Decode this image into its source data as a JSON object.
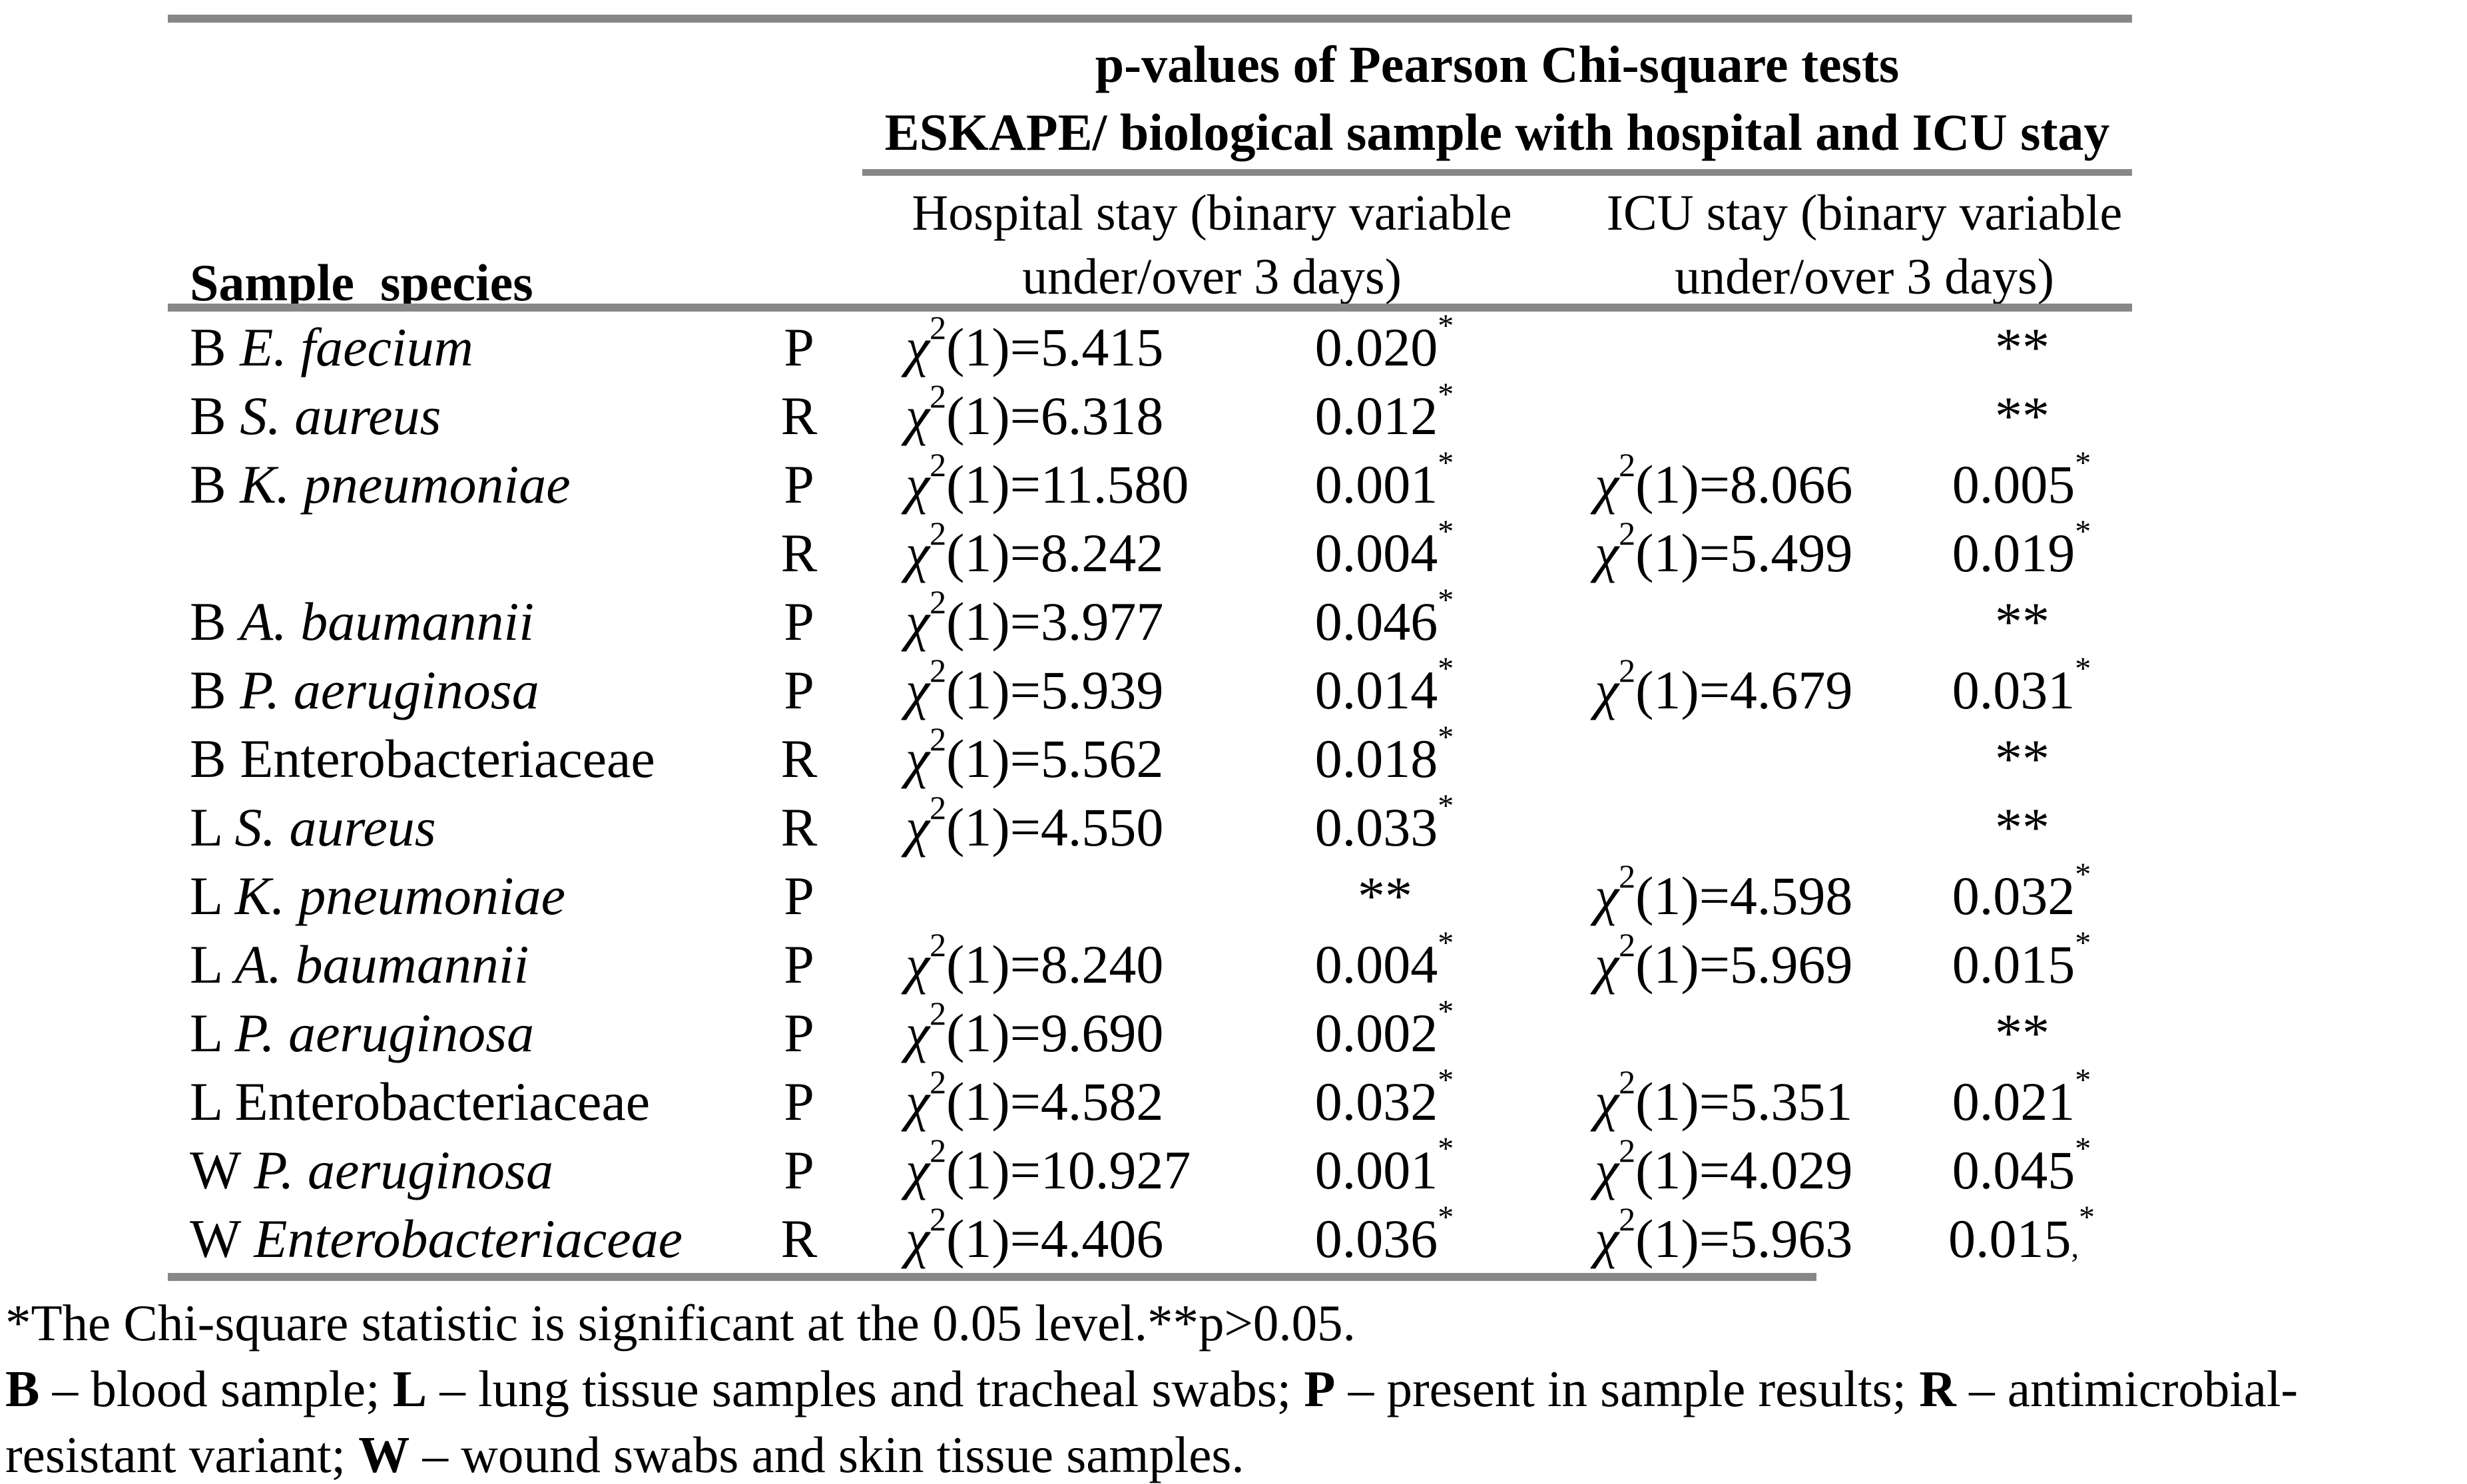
{
  "colors": {
    "rule_gray": "#878787",
    "text": "#000000",
    "background": "#ffffff"
  },
  "table": {
    "title_line1": "p-values of Pearson Chi-square tests",
    "title_line2": "ESKAPE/ biological sample with hospital and ICU stay",
    "species_column_header": "Sample_species",
    "hospital_header_line1": "Hospital stay (binary variable",
    "hospital_header_line2": "under/over 3 days)",
    "icu_header_line1": "ICU stay (binary variable",
    "icu_header_line2": "under/over 3 days)",
    "chi_format": {
      "symbol": "χ",
      "exponent": "2",
      "rest": "(1)="
    },
    "rows": [
      {
        "sample": "B",
        "species": "E. faecium",
        "species_italic": true,
        "variant": "P",
        "hospital": {
          "chi": "5.415",
          "p": "0.020",
          "sup": "*"
        },
        "icu": {
          "chi": "",
          "p": "**",
          "sup": ""
        }
      },
      {
        "sample": "B",
        "species": "S. aureus",
        "species_italic": true,
        "variant": "R",
        "hospital": {
          "chi": "6.318",
          "p": "0.012",
          "sup": "*"
        },
        "icu": {
          "chi": "",
          "p": "**",
          "sup": ""
        }
      },
      {
        "sample": "B",
        "species": "K. pneumoniae",
        "species_italic": true,
        "variant": "P",
        "hospital": {
          "chi": "11.580",
          "p": "0.001",
          "sup": "*"
        },
        "icu": {
          "chi": "8.066",
          "p": "0.005",
          "sup": "*"
        }
      },
      {
        "sample": "",
        "species": "",
        "species_italic": false,
        "variant": "R",
        "hospital": {
          "chi": "8.242",
          "p": "0.004",
          "sup": "*"
        },
        "icu": {
          "chi": "5.499",
          "p": "0.019",
          "sup": "*"
        }
      },
      {
        "sample": "B",
        "species": "A. baumannii",
        "species_italic": true,
        "variant": "P",
        "hospital": {
          "chi": "3.977",
          "p": "0.046",
          "sup": "*"
        },
        "icu": {
          "chi": "",
          "p": "**",
          "sup": ""
        }
      },
      {
        "sample": "B",
        "species": "P. aeruginosa",
        "species_italic": true,
        "variant": "P",
        "hospital": {
          "chi": "5.939",
          "p": "0.014",
          "sup": "*"
        },
        "icu": {
          "chi": "4.679",
          "p": "0.031",
          "sup": "*"
        }
      },
      {
        "sample": "B",
        "species": "Enterobacteriaceae",
        "species_italic": false,
        "variant": "R",
        "hospital": {
          "chi": "5.562",
          "p": "0.018",
          "sup": "*"
        },
        "icu": {
          "chi": "",
          "p": "**",
          "sup": ""
        }
      },
      {
        "sample": "L",
        "species": "S. aureus",
        "species_italic": true,
        "variant": "R",
        "hospital": {
          "chi": "4.550",
          "p": "0.033",
          "sup": "*"
        },
        "icu": {
          "chi": "",
          "p": "**",
          "sup": ""
        }
      },
      {
        "sample": "L",
        "species": "K. pneumoniae",
        "species_italic": true,
        "variant": "P",
        "hospital": {
          "chi": "",
          "p": "**",
          "sup": ""
        },
        "icu": {
          "chi": "4.598",
          "p": "0.032",
          "sup": "*"
        }
      },
      {
        "sample": "L",
        "species": "A. baumannii",
        "species_italic": true,
        "variant": "P",
        "hospital": {
          "chi": "8.240",
          "p": "0.004",
          "sup": "*"
        },
        "icu": {
          "chi": "5.969",
          "p": "0.015",
          "sup": "*"
        }
      },
      {
        "sample": "L",
        "species": "P. aeruginosa",
        "species_italic": true,
        "variant": "P",
        "hospital": {
          "chi": "9.690",
          "p": "0.002",
          "sup": "*"
        },
        "icu": {
          "chi": "",
          "p": "**",
          "sup": ""
        }
      },
      {
        "sample": "L",
        "species": "Enterobacteriaceae",
        "species_italic": false,
        "variant": "P",
        "hospital": {
          "chi": "4.582",
          "p": "0.032",
          "sup": "*"
        },
        "icu": {
          "chi": "5.351",
          "p": "0.021",
          "sup": "*"
        }
      },
      {
        "sample": "W",
        "species": "P. aeruginosa",
        "species_italic": true,
        "variant": "P",
        "hospital": {
          "chi": "10.927",
          "p": "0.001",
          "sup": "*"
        },
        "icu": {
          "chi": "4.029",
          "p": "0.045",
          "sup": "*"
        }
      },
      {
        "sample": "W",
        "species": "Enterobacteriaceae",
        "species_italic": true,
        "variant": "R",
        "hospital": {
          "chi": "4.406",
          "p": "0.036",
          "sup": "*"
        },
        "icu": {
          "chi": "5.963",
          "p": "0.015",
          "trail": ",",
          "sup": "*"
        }
      }
    ]
  },
  "footnotes": {
    "line1": "*The Chi-square statistic is significant at the 0.05 level.**p>0.05.",
    "line2_segments": [
      {
        "bold": true,
        "text": "B"
      },
      {
        "bold": false,
        "text": " – blood sample; "
      },
      {
        "bold": true,
        "text": "L"
      },
      {
        "bold": false,
        "text": " – lung tissue samples and tracheal swabs; "
      },
      {
        "bold": true,
        "text": "P"
      },
      {
        "bold": false,
        "text": " – present in sample results; "
      },
      {
        "bold": true,
        "text": "R"
      },
      {
        "bold": false,
        "text": " – antimicrobial-"
      }
    ],
    "line3_segments": [
      {
        "bold": false,
        "text": "resistant variant; "
      },
      {
        "bold": true,
        "text": "W"
      },
      {
        "bold": false,
        "text": " – wound swabs and skin tissue samples."
      }
    ]
  }
}
